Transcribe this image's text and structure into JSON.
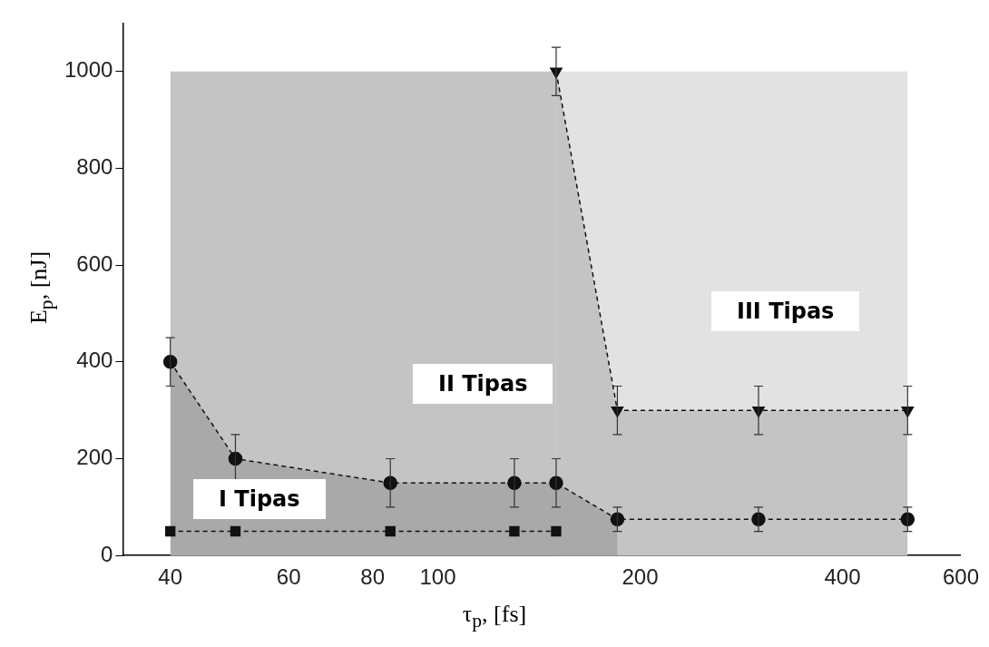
{
  "chart_data": {
    "type": "line",
    "xlabel": "τ$_{p}$, [fs]",
    "ylabel": "E$_{p}$, [nJ]",
    "log": "x",
    "xlim": [
      34,
      600
    ],
    "xticks": [
      40,
      60,
      80,
      100,
      200,
      400,
      600
    ],
    "ylim": [
      0,
      1100
    ],
    "yticks": [
      0,
      200,
      400,
      600,
      800,
      1000
    ],
    "grid": false,
    "legend": false,
    "line_style": "dashed",
    "series": [
      {
        "type": "area",
        "color": "#e2e2e2",
        "x": [
          150,
          500
        ],
        "values": [
          1000,
          1000
        ]
      },
      {
        "type": "area",
        "color": "#c4c4c4",
        "x": [
          40,
          150
        ],
        "values": [
          1000,
          1000
        ]
      },
      {
        "type": "area",
        "color": "#a9a9a9",
        "x": [
          40,
          50,
          85,
          130,
          150,
          185
        ],
        "values": [
          400,
          200,
          150,
          150,
          150,
          75
        ]
      },
      {
        "color": "#111111",
        "marker": "square",
        "x": [
          40,
          50,
          85,
          130,
          150
        ],
        "values": [
          50,
          50,
          50,
          50,
          50
        ]
      },
      {
        "color": "#111111",
        "marker": "circle",
        "x": [
          40,
          50,
          85,
          130,
          150,
          185,
          300,
          500
        ],
        "values": [
          400,
          200,
          150,
          150,
          150,
          75,
          75,
          75
        ],
        "errors": [
          50,
          50,
          50,
          50,
          50,
          25,
          25,
          25
        ]
      },
      {
        "color": "#111111",
        "marker": "triangle",
        "x": [
          150,
          185,
          300,
          500
        ],
        "values": [
          1000,
          300,
          300,
          300
        ],
        "errors": [
          50,
          50,
          50,
          50
        ]
      }
    ],
    "annotations": [
      "I Tipas",
      "II Tipas",
      "III Tipas"
    ]
  }
}
